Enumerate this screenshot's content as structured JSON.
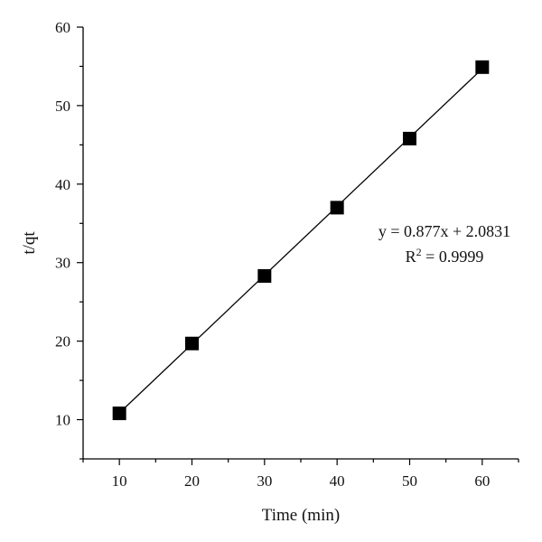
{
  "chart_data": {
    "type": "scatter",
    "title": "",
    "xlabel": "Time (min)",
    "ylabel": "t/qt",
    "xlim": [
      5,
      65
    ],
    "ylim": [
      5,
      60
    ],
    "x_ticks": [
      10,
      20,
      30,
      40,
      50,
      60
    ],
    "y_ticks": [
      10,
      20,
      30,
      40,
      50,
      60
    ],
    "grid": false,
    "legend": "none",
    "series": [
      {
        "x": [
          10,
          20,
          30,
          40,
          50,
          60
        ],
        "y": [
          10.8,
          19.7,
          28.3,
          37.0,
          45.8,
          54.9
        ],
        "marker": "square",
        "color": "#000000"
      }
    ],
    "fit_line": {
      "slope": 0.877,
      "intercept": 2.0831,
      "x_range": [
        10,
        60
      ],
      "color": "#000000"
    },
    "annotations": {
      "equation": "y = 0.877x + 2.0831",
      "r2_prefix": "R",
      "r2_sup": "2",
      "r2_value": " = 0.9999"
    }
  }
}
